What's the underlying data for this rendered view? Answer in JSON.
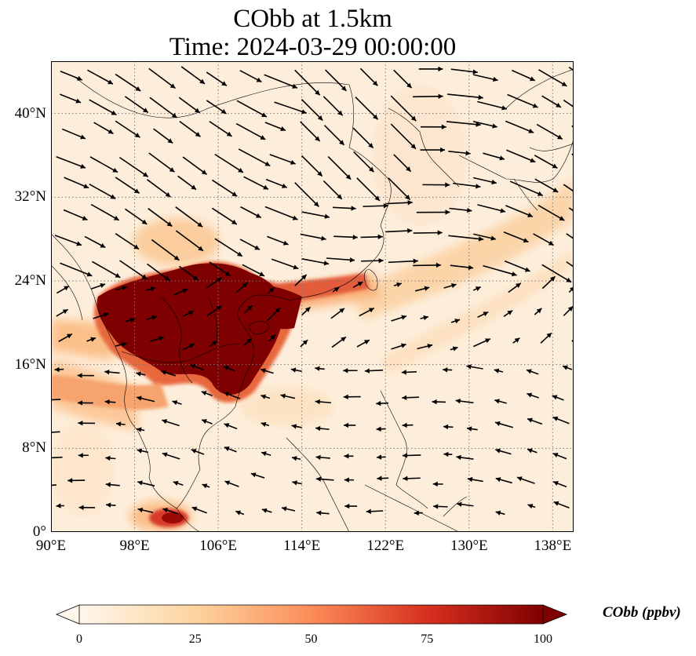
{
  "title": {
    "line1": "CObb at 1.5km",
    "line2": "Time: 2024-03-29 00:00:00"
  },
  "map": {
    "lon_range": [
      90,
      140
    ],
    "lat_range": [
      0,
      45
    ],
    "lon_ticks": [
      {
        "value": 90,
        "label": "90°E"
      },
      {
        "value": 98,
        "label": "98°E"
      },
      {
        "value": 106,
        "label": "106°E"
      },
      {
        "value": 114,
        "label": "114°E"
      },
      {
        "value": 122,
        "label": "122°E"
      },
      {
        "value": 130,
        "label": "130°E"
      },
      {
        "value": 138,
        "label": "138°E"
      }
    ],
    "lat_ticks": [
      {
        "value": 0,
        "label": "0°"
      },
      {
        "value": 8,
        "label": "8°N"
      },
      {
        "value": 16,
        "label": "16°N"
      },
      {
        "value": 24,
        "label": "24°N"
      },
      {
        "value": 32,
        "label": "32°N"
      },
      {
        "value": 40,
        "label": "40°N"
      }
    ],
    "gridlines": "dotted",
    "field": "CObb concentration with wind vectors"
  },
  "colorbar": {
    "label": "CObb (ppbv)",
    "min": 0,
    "max": 100,
    "ticks": [
      "0",
      "25",
      "50",
      "75",
      "100"
    ],
    "colormap": "OrRd",
    "colors": [
      "#fff7ec",
      "#fdd49e",
      "#fc8d59",
      "#d7301f",
      "#7f0000"
    ],
    "extend": "both"
  }
}
